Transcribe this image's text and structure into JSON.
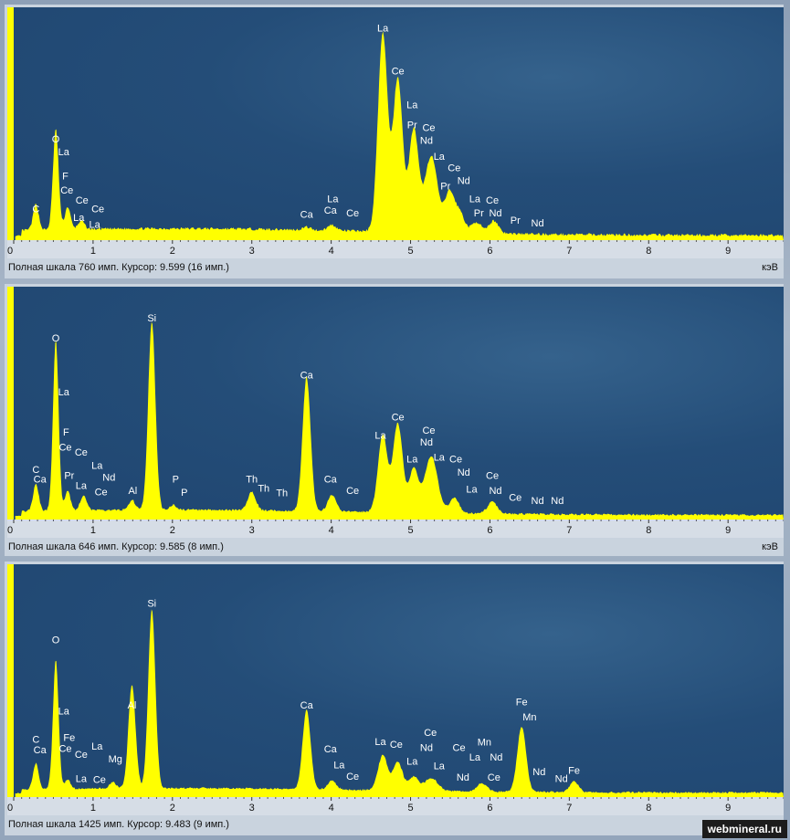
{
  "watermark": "webmineral.ru",
  "colors": {
    "spectrum": "#ffff00",
    "plot_bg": "#234b76",
    "label": "#ffffff"
  },
  "chart_data": [
    {
      "type": "area",
      "xlim": [
        0,
        9.7
      ],
      "ylim": [
        0,
        760
      ],
      "x_ticks": [
        "0",
        "1",
        "2",
        "3",
        "4",
        "5",
        "6",
        "7",
        "8",
        "9"
      ],
      "unit": "кэВ",
      "status": "Полная шкала 760 имп. Курсор: 9.599  (16 имп.)",
      "baseline": 28,
      "peaks": [
        {
          "x": 0.28,
          "h": 90,
          "w": 0.035
        },
        {
          "x": 0.53,
          "h": 355,
          "w": 0.035
        },
        {
          "x": 0.68,
          "h": 80,
          "w": 0.035
        },
        {
          "x": 0.85,
          "h": 30,
          "w": 0.04
        },
        {
          "x": 3.69,
          "h": 10,
          "w": 0.05
        },
        {
          "x": 4.01,
          "h": 20,
          "w": 0.05
        },
        {
          "x": 4.65,
          "h": 700,
          "w": 0.06
        },
        {
          "x": 4.84,
          "h": 540,
          "w": 0.06
        },
        {
          "x": 5.04,
          "h": 360,
          "w": 0.06
        },
        {
          "x": 5.26,
          "h": 270,
          "w": 0.08
        },
        {
          "x": 5.49,
          "h": 140,
          "w": 0.06
        },
        {
          "x": 5.62,
          "h": 70,
          "w": 0.06
        },
        {
          "x": 5.83,
          "h": 40,
          "w": 0.06
        },
        {
          "x": 6.05,
          "h": 45,
          "w": 0.06
        }
      ],
      "labels": [
        {
          "t": "C",
          "x": 0.28,
          "y": 85
        },
        {
          "t": "O",
          "x": 0.53,
          "y": 330
        },
        {
          "t": "La",
          "x": 0.63,
          "y": 285
        },
        {
          "t": "F",
          "x": 0.65,
          "y": 200
        },
        {
          "t": "Ce",
          "x": 0.67,
          "y": 150
        },
        {
          "t": "Ce",
          "x": 0.86,
          "y": 115
        },
        {
          "t": "Ce",
          "x": 1.06,
          "y": 85
        },
        {
          "t": "La",
          "x": 0.82,
          "y": 55
        },
        {
          "t": "La",
          "x": 1.02,
          "y": 30
        },
        {
          "t": "Ca",
          "x": 3.69,
          "y": 65
        },
        {
          "t": "La",
          "x": 4.02,
          "y": 120
        },
        {
          "t": "Ca",
          "x": 3.99,
          "y": 80
        },
        {
          "t": "Ce",
          "x": 4.27,
          "y": 70
        },
        {
          "t": "La",
          "x": 4.65,
          "y": 720
        },
        {
          "t": "Ce",
          "x": 4.84,
          "y": 570
        },
        {
          "t": "La",
          "x": 5.02,
          "y": 450
        },
        {
          "t": "Pr",
          "x": 5.02,
          "y": 380
        },
        {
          "t": "Ce",
          "x": 5.23,
          "y": 370
        },
        {
          "t": "Nd",
          "x": 5.2,
          "y": 325
        },
        {
          "t": "La",
          "x": 5.36,
          "y": 270
        },
        {
          "t": "Ce",
          "x": 5.55,
          "y": 230
        },
        {
          "t": "Nd",
          "x": 5.67,
          "y": 185
        },
        {
          "t": "Pr",
          "x": 5.44,
          "y": 165
        },
        {
          "t": "La",
          "x": 5.81,
          "y": 120
        },
        {
          "t": "Ce",
          "x": 6.03,
          "y": 115
        },
        {
          "t": "Pr",
          "x": 5.86,
          "y": 70
        },
        {
          "t": "Nd",
          "x": 6.07,
          "y": 70
        },
        {
          "t": "Pr",
          "x": 6.32,
          "y": 45
        },
        {
          "t": "Nd",
          "x": 6.6,
          "y": 35
        }
      ]
    },
    {
      "type": "area",
      "xlim": [
        0,
        9.7
      ],
      "ylim": [
        0,
        646
      ],
      "x_ticks": [
        "0",
        "1",
        "2",
        "3",
        "4",
        "5",
        "6",
        "7",
        "8",
        "9"
      ],
      "unit": "кэВ",
      "status": "Полная шкала 646 имп. Курсор: 9.585  (8 имп.)",
      "baseline": 18,
      "peaks": [
        {
          "x": 0.28,
          "h": 80,
          "w": 0.035
        },
        {
          "x": 0.53,
          "h": 510,
          "w": 0.035
        },
        {
          "x": 0.68,
          "h": 60,
          "w": 0.035
        },
        {
          "x": 0.88,
          "h": 45,
          "w": 0.04
        },
        {
          "x": 1.49,
          "h": 30,
          "w": 0.04
        },
        {
          "x": 1.74,
          "h": 565,
          "w": 0.045
        },
        {
          "x": 2.01,
          "h": 15,
          "w": 0.04
        },
        {
          "x": 3.0,
          "h": 55,
          "w": 0.05
        },
        {
          "x": 3.69,
          "h": 400,
          "w": 0.05
        },
        {
          "x": 4.01,
          "h": 50,
          "w": 0.05
        },
        {
          "x": 4.65,
          "h": 230,
          "w": 0.06
        },
        {
          "x": 4.84,
          "h": 265,
          "w": 0.06
        },
        {
          "x": 5.04,
          "h": 130,
          "w": 0.06
        },
        {
          "x": 5.26,
          "h": 170,
          "w": 0.08
        },
        {
          "x": 5.55,
          "h": 45,
          "w": 0.06
        },
        {
          "x": 6.03,
          "h": 35,
          "w": 0.06
        }
      ],
      "labels": [
        {
          "t": "C",
          "x": 0.28,
          "y": 128
        },
        {
          "t": "Ca",
          "x": 0.33,
          "y": 100
        },
        {
          "t": "O",
          "x": 0.53,
          "y": 520
        },
        {
          "t": "La",
          "x": 0.63,
          "y": 360
        },
        {
          "t": "F",
          "x": 0.66,
          "y": 240
        },
        {
          "t": "Ce",
          "x": 0.65,
          "y": 195
        },
        {
          "t": "Ce",
          "x": 0.85,
          "y": 180
        },
        {
          "t": "Pr",
          "x": 0.7,
          "y": 110
        },
        {
          "t": "La",
          "x": 0.85,
          "y": 80
        },
        {
          "t": "La",
          "x": 1.05,
          "y": 140
        },
        {
          "t": "Nd",
          "x": 1.2,
          "y": 105
        },
        {
          "t": "Ce",
          "x": 1.1,
          "y": 62
        },
        {
          "t": "Al",
          "x": 1.5,
          "y": 65
        },
        {
          "t": "Si",
          "x": 1.74,
          "y": 580
        },
        {
          "t": "P",
          "x": 2.04,
          "y": 100
        },
        {
          "t": "P",
          "x": 2.15,
          "y": 60
        },
        {
          "t": "Th",
          "x": 3.0,
          "y": 100
        },
        {
          "t": "Th",
          "x": 3.15,
          "y": 72
        },
        {
          "t": "Th",
          "x": 3.38,
          "y": 58
        },
        {
          "t": "Ca",
          "x": 3.69,
          "y": 410
        },
        {
          "t": "Ca",
          "x": 3.99,
          "y": 100
        },
        {
          "t": "Ce",
          "x": 4.27,
          "y": 65
        },
        {
          "t": "Ce",
          "x": 4.84,
          "y": 285
        },
        {
          "t": "La",
          "x": 4.62,
          "y": 230
        },
        {
          "t": "Ce",
          "x": 5.23,
          "y": 245
        },
        {
          "t": "Nd",
          "x": 5.2,
          "y": 210
        },
        {
          "t": "La",
          "x": 5.02,
          "y": 160
        },
        {
          "t": "La",
          "x": 5.36,
          "y": 165
        },
        {
          "t": "Ce",
          "x": 5.57,
          "y": 160
        },
        {
          "t": "Nd",
          "x": 5.67,
          "y": 120
        },
        {
          "t": "La",
          "x": 5.77,
          "y": 70
        },
        {
          "t": "Ce",
          "x": 6.03,
          "y": 110
        },
        {
          "t": "Nd",
          "x": 6.07,
          "y": 65
        },
        {
          "t": "Ce",
          "x": 6.32,
          "y": 45
        },
        {
          "t": "Nd",
          "x": 6.6,
          "y": 35
        },
        {
          "t": "Nd",
          "x": 6.85,
          "y": 35
        }
      ]
    },
    {
      "type": "area",
      "xlim": [
        0,
        9.7
      ],
      "ylim": [
        0,
        1425
      ],
      "x_ticks": [
        "0",
        "1",
        "2",
        "3",
        "4",
        "5",
        "6",
        "7",
        "8",
        "9"
      ],
      "unit": "кэВ",
      "status": "Полная шкала 1425 имп. Курсор: 9.483  (9 имп.)",
      "baseline": 35,
      "peaks": [
        {
          "x": 0.28,
          "h": 170,
          "w": 0.035
        },
        {
          "x": 0.53,
          "h": 850,
          "w": 0.035
        },
        {
          "x": 0.68,
          "h": 60,
          "w": 0.035
        },
        {
          "x": 1.25,
          "h": 40,
          "w": 0.04
        },
        {
          "x": 1.49,
          "h": 680,
          "w": 0.045
        },
        {
          "x": 1.74,
          "h": 1180,
          "w": 0.045
        },
        {
          "x": 3.69,
          "h": 520,
          "w": 0.05
        },
        {
          "x": 4.01,
          "h": 60,
          "w": 0.05
        },
        {
          "x": 4.65,
          "h": 230,
          "w": 0.06
        },
        {
          "x": 4.84,
          "h": 185,
          "w": 0.06
        },
        {
          "x": 5.04,
          "h": 90,
          "w": 0.06
        },
        {
          "x": 5.26,
          "h": 85,
          "w": 0.08
        },
        {
          "x": 5.9,
          "h": 55,
          "w": 0.06
        },
        {
          "x": 6.4,
          "h": 430,
          "w": 0.055
        },
        {
          "x": 7.06,
          "h": 70,
          "w": 0.055
        }
      ],
      "labels": [
        {
          "t": "C",
          "x": 0.28,
          "y": 335
        },
        {
          "t": "Ca",
          "x": 0.33,
          "y": 265
        },
        {
          "t": "O",
          "x": 0.53,
          "y": 990
        },
        {
          "t": "La",
          "x": 0.63,
          "y": 520
        },
        {
          "t": "Fe",
          "x": 0.7,
          "y": 345
        },
        {
          "t": "Ce",
          "x": 0.65,
          "y": 275
        },
        {
          "t": "Ce",
          "x": 0.85,
          "y": 235
        },
        {
          "t": "La",
          "x": 1.05,
          "y": 290
        },
        {
          "t": "Mg",
          "x": 1.28,
          "y": 205
        },
        {
          "t": "La",
          "x": 0.85,
          "y": 75
        },
        {
          "t": "Ce",
          "x": 1.08,
          "y": 70
        },
        {
          "t": "Al",
          "x": 1.49,
          "y": 560
        },
        {
          "t": "Si",
          "x": 1.74,
          "y": 1230
        },
        {
          "t": "Ca",
          "x": 3.69,
          "y": 560
        },
        {
          "t": "Ca",
          "x": 3.99,
          "y": 270
        },
        {
          "t": "La",
          "x": 4.1,
          "y": 165
        },
        {
          "t": "Ce",
          "x": 4.27,
          "y": 90
        },
        {
          "t": "La",
          "x": 4.62,
          "y": 320
        },
        {
          "t": "Ce",
          "x": 4.82,
          "y": 300
        },
        {
          "t": "Ce",
          "x": 5.25,
          "y": 380
        },
        {
          "t": "Nd",
          "x": 5.2,
          "y": 280
        },
        {
          "t": "La",
          "x": 5.02,
          "y": 190
        },
        {
          "t": "La",
          "x": 5.36,
          "y": 160
        },
        {
          "t": "Ce",
          "x": 5.61,
          "y": 280
        },
        {
          "t": "La",
          "x": 5.81,
          "y": 215
        },
        {
          "t": "Mn",
          "x": 5.93,
          "y": 315
        },
        {
          "t": "Nd",
          "x": 6.08,
          "y": 215
        },
        {
          "t": "Nd",
          "x": 5.66,
          "y": 85
        },
        {
          "t": "Ce",
          "x": 6.05,
          "y": 85
        },
        {
          "t": "Fe",
          "x": 6.4,
          "y": 580
        },
        {
          "t": "Mn",
          "x": 6.5,
          "y": 480
        },
        {
          "t": "Nd",
          "x": 6.62,
          "y": 120
        },
        {
          "t": "Nd",
          "x": 6.9,
          "y": 75
        },
        {
          "t": "Fe",
          "x": 7.06,
          "y": 130
        }
      ]
    }
  ]
}
